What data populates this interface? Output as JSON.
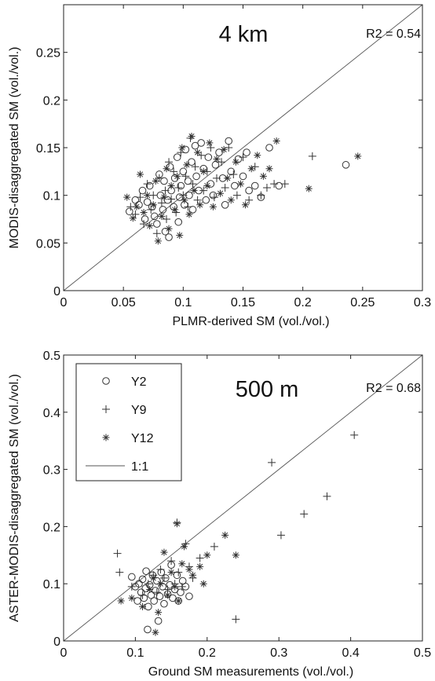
{
  "chart_data": [
    {
      "type": "scatter",
      "panel_label": "4 km",
      "annotation": "R2 = 0.54",
      "xlabel": "PLMR-derived SM (vol./vol.)",
      "ylabel": "MODIS-disaggregated SM (vol./vol.)",
      "xlim": [
        0,
        0.3
      ],
      "ylim": [
        0,
        0.3
      ],
      "xticks": [
        "0",
        "0.05",
        "0.1",
        "0.15",
        "0.2",
        "0.25",
        "0.3"
      ],
      "yticks": [
        "0",
        "0.05",
        "0.1",
        "0.15",
        "0.2",
        "0.25"
      ],
      "grid": false,
      "reference_line": "1:1",
      "series": [
        {
          "name": "Y2",
          "marker": "circle",
          "points": [
            [
              0.055,
              0.083
            ],
            [
              0.06,
              0.095
            ],
            [
              0.063,
              0.09
            ],
            [
              0.066,
              0.105
            ],
            [
              0.068,
              0.075
            ],
            [
              0.07,
              0.093
            ],
            [
              0.072,
              0.11
            ],
            [
              0.074,
              0.088
            ],
            [
              0.076,
              0.078
            ],
            [
              0.078,
              0.07
            ],
            [
              0.08,
              0.122
            ],
            [
              0.081,
              0.1
            ],
            [
              0.083,
              0.085
            ],
            [
              0.084,
              0.115
            ],
            [
              0.085,
              0.062
            ],
            [
              0.087,
              0.095
            ],
            [
              0.088,
              0.056
            ],
            [
              0.089,
              0.13
            ],
            [
              0.09,
              0.105
            ],
            [
              0.092,
              0.088
            ],
            [
              0.093,
              0.118
            ],
            [
              0.095,
              0.14
            ],
            [
              0.096,
              0.072
            ],
            [
              0.097,
              0.098
            ],
            [
              0.098,
              0.11
            ],
            [
              0.1,
              0.125
            ],
            [
              0.101,
              0.09
            ],
            [
              0.102,
              0.148
            ],
            [
              0.104,
              0.115
            ],
            [
              0.105,
              0.1
            ],
            [
              0.107,
              0.135
            ],
            [
              0.108,
              0.085
            ],
            [
              0.11,
              0.152
            ],
            [
              0.111,
              0.12
            ],
            [
              0.113,
              0.105
            ],
            [
              0.115,
              0.155
            ],
            [
              0.117,
              0.128
            ],
            [
              0.119,
              0.095
            ],
            [
              0.121,
              0.14
            ],
            [
              0.123,
              0.112
            ],
            [
              0.125,
              0.1
            ],
            [
              0.127,
              0.132
            ],
            [
              0.13,
              0.145
            ],
            [
              0.133,
              0.118
            ],
            [
              0.135,
              0.09
            ],
            [
              0.138,
              0.157
            ],
            [
              0.14,
              0.125
            ],
            [
              0.143,
              0.11
            ],
            [
              0.146,
              0.138
            ],
            [
              0.15,
              0.12
            ],
            [
              0.153,
              0.145
            ],
            [
              0.155,
              0.105
            ],
            [
              0.16,
              0.11
            ],
            [
              0.165,
              0.098
            ],
            [
              0.172,
              0.15
            ],
            [
              0.18,
              0.11
            ],
            [
              0.236,
              0.132
            ]
          ]
        },
        {
          "name": "Y9",
          "marker": "plus",
          "points": [
            [
              0.056,
              0.088
            ],
            [
              0.06,
              0.08
            ],
            [
              0.064,
              0.098
            ],
            [
              0.067,
              0.07
            ],
            [
              0.07,
              0.112
            ],
            [
              0.073,
              0.085
            ],
            [
              0.075,
              0.1
            ],
            [
              0.078,
              0.06
            ],
            [
              0.08,
              0.118
            ],
            [
              0.082,
              0.092
            ],
            [
              0.085,
              0.105
            ],
            [
              0.086,
              0.075
            ],
            [
              0.088,
              0.135
            ],
            [
              0.09,
              0.096
            ],
            [
              0.092,
              0.125
            ],
            [
              0.094,
              0.082
            ],
            [
              0.096,
              0.108
            ],
            [
              0.098,
              0.145
            ],
            [
              0.1,
              0.1
            ],
            [
              0.102,
              0.12
            ],
            [
              0.104,
              0.088
            ],
            [
              0.106,
              0.16
            ],
            [
              0.108,
              0.112
            ],
            [
              0.11,
              0.13
            ],
            [
              0.112,
              0.095
            ],
            [
              0.115,
              0.142
            ],
            [
              0.117,
              0.105
            ],
            [
              0.12,
              0.125
            ],
            [
              0.123,
              0.15
            ],
            [
              0.126,
              0.098
            ],
            [
              0.128,
              0.118
            ],
            [
              0.132,
              0.135
            ],
            [
              0.135,
              0.108
            ],
            [
              0.138,
              0.15
            ],
            [
              0.142,
              0.122
            ],
            [
              0.145,
              0.1
            ],
            [
              0.15,
              0.14
            ],
            [
              0.155,
              0.095
            ],
            [
              0.16,
              0.13
            ],
            [
              0.165,
              0.1
            ],
            [
              0.17,
              0.108
            ],
            [
              0.176,
              0.112
            ],
            [
              0.185,
              0.112
            ],
            [
              0.208,
              0.141
            ]
          ]
        },
        {
          "name": "Y12",
          "marker": "asterisk",
          "points": [
            [
              0.053,
              0.098
            ],
            [
              0.058,
              0.076
            ],
            [
              0.061,
              0.088
            ],
            [
              0.064,
              0.122
            ],
            [
              0.067,
              0.082
            ],
            [
              0.07,
              0.1
            ],
            [
              0.072,
              0.068
            ],
            [
              0.075,
              0.09
            ],
            [
              0.077,
              0.115
            ],
            [
              0.079,
              0.052
            ],
            [
              0.082,
              0.078
            ],
            [
              0.084,
              0.098
            ],
            [
              0.086,
              0.128
            ],
            [
              0.088,
              0.065
            ],
            [
              0.09,
              0.11
            ],
            [
              0.093,
              0.085
            ],
            [
              0.095,
              0.12
            ],
            [
              0.097,
              0.058
            ],
            [
              0.099,
              0.15
            ],
            [
              0.101,
              0.095
            ],
            [
              0.103,
              0.132
            ],
            [
              0.105,
              0.08
            ],
            [
              0.107,
              0.162
            ],
            [
              0.109,
              0.105
            ],
            [
              0.112,
              0.145
            ],
            [
              0.114,
              0.09
            ],
            [
              0.117,
              0.125
            ],
            [
              0.12,
              0.11
            ],
            [
              0.122,
              0.155
            ],
            [
              0.125,
              0.088
            ],
            [
              0.128,
              0.138
            ],
            [
              0.131,
              0.102
            ],
            [
              0.134,
              0.148
            ],
            [
              0.137,
              0.118
            ],
            [
              0.14,
              0.095
            ],
            [
              0.144,
              0.135
            ],
            [
              0.148,
              0.112
            ],
            [
              0.152,
              0.09
            ],
            [
              0.157,
              0.128
            ],
            [
              0.162,
              0.142
            ],
            [
              0.167,
              0.12
            ],
            [
              0.172,
              0.128
            ],
            [
              0.178,
              0.157
            ],
            [
              0.205,
              0.107
            ],
            [
              0.246,
              0.141
            ]
          ]
        }
      ]
    },
    {
      "type": "scatter",
      "panel_label": "500 m",
      "annotation": "R2 = 0.68",
      "xlabel": "Ground SM measurements (vol./vol.)",
      "ylabel": "ASTER-MODIS-disaggregated SM (vol./vol.)",
      "xlim": [
        0,
        0.5
      ],
      "ylim": [
        0,
        0.5
      ],
      "xticks": [
        "0",
        "0.1",
        "0.2",
        "0.3",
        "0.4",
        "0.5"
      ],
      "yticks": [
        "0",
        "0.1",
        "0.2",
        "0.3",
        "0.4",
        "0.5"
      ],
      "grid": false,
      "reference_line": "1:1",
      "legend": {
        "placement": "top-left",
        "entries": [
          "Y2",
          "Y9",
          "Y12",
          "1:1"
        ]
      },
      "series": [
        {
          "name": "Y2",
          "marker": "circle",
          "points": [
            [
              0.095,
              0.112
            ],
            [
              0.1,
              0.095
            ],
            [
              0.103,
              0.07
            ],
            [
              0.105,
              0.1
            ],
            [
              0.108,
              0.085
            ],
            [
              0.11,
              0.108
            ],
            [
              0.112,
              0.075
            ],
            [
              0.114,
              0.092
            ],
            [
              0.115,
              0.122
            ],
            [
              0.117,
              0.02
            ],
            [
              0.118,
              0.06
            ],
            [
              0.12,
              0.098
            ],
            [
              0.122,
              0.08
            ],
            [
              0.124,
              0.115
            ],
            [
              0.126,
              0.07
            ],
            [
              0.128,
              0.088
            ],
            [
              0.13,
              0.105
            ],
            [
              0.132,
              0.035
            ],
            [
              0.134,
              0.078
            ],
            [
              0.136,
              0.12
            ],
            [
              0.138,
              0.095
            ],
            [
              0.14,
              0.065
            ],
            [
              0.142,
              0.11
            ],
            [
              0.145,
              0.082
            ],
            [
              0.148,
              0.098
            ],
            [
              0.15,
              0.133
            ],
            [
              0.152,
              0.075
            ],
            [
              0.155,
              0.09
            ],
            [
              0.158,
              0.115
            ],
            [
              0.16,
              0.07
            ],
            [
              0.163,
              0.085
            ],
            [
              0.166,
              0.105
            ],
            [
              0.17,
              0.095
            ],
            [
              0.175,
              0.078
            ]
          ]
        },
        {
          "name": "Y9",
          "marker": "plus",
          "points": [
            [
              0.075,
              0.153
            ],
            [
              0.078,
              0.12
            ],
            [
              0.095,
              0.095
            ],
            [
              0.11,
              0.08
            ],
            [
              0.118,
              0.1
            ],
            [
              0.125,
              0.115
            ],
            [
              0.13,
              0.085
            ],
            [
              0.135,
              0.125
            ],
            [
              0.14,
              0.11
            ],
            [
              0.145,
              0.09
            ],
            [
              0.15,
              0.14
            ],
            [
              0.155,
              0.1
            ],
            [
              0.158,
              0.207
            ],
            [
              0.16,
              0.12
            ],
            [
              0.165,
              0.095
            ],
            [
              0.17,
              0.17
            ],
            [
              0.175,
              0.13
            ],
            [
              0.18,
              0.11
            ],
            [
              0.19,
              0.145
            ],
            [
              0.21,
              0.165
            ],
            [
              0.24,
              0.038
            ],
            [
              0.29,
              0.312
            ],
            [
              0.303,
              0.185
            ],
            [
              0.335,
              0.222
            ],
            [
              0.367,
              0.253
            ],
            [
              0.405,
              0.36
            ]
          ]
        },
        {
          "name": "Y12",
          "marker": "asterisk",
          "points": [
            [
              0.08,
              0.07
            ],
            [
              0.095,
              0.075
            ],
            [
              0.11,
              0.06
            ],
            [
              0.12,
              0.09
            ],
            [
              0.125,
              0.11
            ],
            [
              0.128,
              0.015
            ],
            [
              0.132,
              0.05
            ],
            [
              0.135,
              0.1
            ],
            [
              0.14,
              0.155
            ],
            [
              0.145,
              0.08
            ],
            [
              0.15,
              0.12
            ],
            [
              0.155,
              0.095
            ],
            [
              0.158,
              0.205
            ],
            [
              0.16,
              0.07
            ],
            [
              0.165,
              0.135
            ],
            [
              0.168,
              0.165
            ],
            [
              0.175,
              0.125
            ],
            [
              0.18,
              0.115
            ],
            [
              0.19,
              0.13
            ],
            [
              0.195,
              0.1
            ],
            [
              0.2,
              0.15
            ],
            [
              0.225,
              0.185
            ],
            [
              0.24,
              0.15
            ]
          ]
        }
      ]
    }
  ]
}
